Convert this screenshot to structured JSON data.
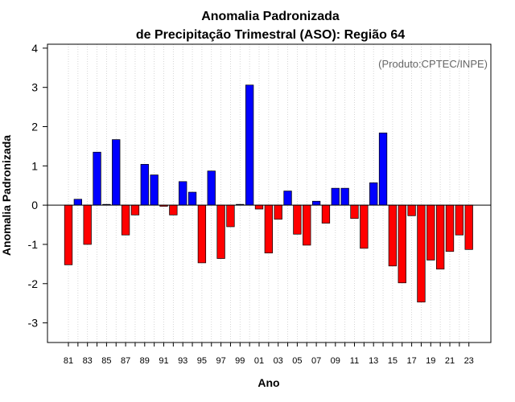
{
  "chart_data": {
    "type": "bar",
    "title_line1": "Anomalia Padronizada",
    "title_line2": "de Precipitação Trimestral (ASO): Região 64",
    "xlabel": "Ano",
    "ylabel": "Anomalia Padronizada",
    "source_note": "(Produto:CPTEC/INPE)",
    "ylim": [
      -3.5,
      4.1
    ],
    "yticks": [
      -3,
      -2,
      -1,
      0,
      1,
      2,
      3,
      4
    ],
    "ytick_labels": [
      "-3",
      "-2",
      "-1",
      "0",
      "1",
      "2",
      "3",
      "4"
    ],
    "grid": "vertical dotted",
    "categories": [
      "81",
      "82",
      "83",
      "84",
      "85",
      "86",
      "87",
      "88",
      "89",
      "90",
      "91",
      "92",
      "93",
      "94",
      "95",
      "96",
      "97",
      "98",
      "99",
      "00",
      "01",
      "02",
      "03",
      "04",
      "05",
      "06",
      "07",
      "08",
      "09",
      "10",
      "11",
      "12",
      "13",
      "14",
      "15",
      "16",
      "17",
      "18",
      "19",
      "20",
      "21",
      "22",
      "23"
    ],
    "xtick_labels_shown": [
      "81",
      "83",
      "85",
      "87",
      "89",
      "91",
      "93",
      "95",
      "97",
      "99",
      "01",
      "03",
      "05",
      "07",
      "09",
      "11",
      "13",
      "15",
      "17",
      "19",
      "21",
      "23"
    ],
    "values": [
      -1.52,
      0.15,
      -1.0,
      1.35,
      0.02,
      1.67,
      -0.76,
      -0.25,
      1.04,
      0.77,
      -0.03,
      -0.25,
      0.6,
      0.33,
      -1.47,
      0.87,
      -1.36,
      -0.55,
      0.02,
      3.06,
      -0.1,
      -1.22,
      -0.36,
      0.36,
      -0.74,
      -1.02,
      0.1,
      -0.46,
      0.43,
      0.43,
      -0.34,
      -1.1,
      0.57,
      1.84,
      -1.55,
      -1.98,
      -0.27,
      -2.47,
      -1.4,
      -1.63,
      -1.18,
      -0.76,
      -1.13
    ],
    "colors": {
      "positive": "#0000ff",
      "negative": "#ff0000",
      "bar_border": "#000000",
      "zero_line": "#000000",
      "grid": "#cccccc"
    }
  }
}
